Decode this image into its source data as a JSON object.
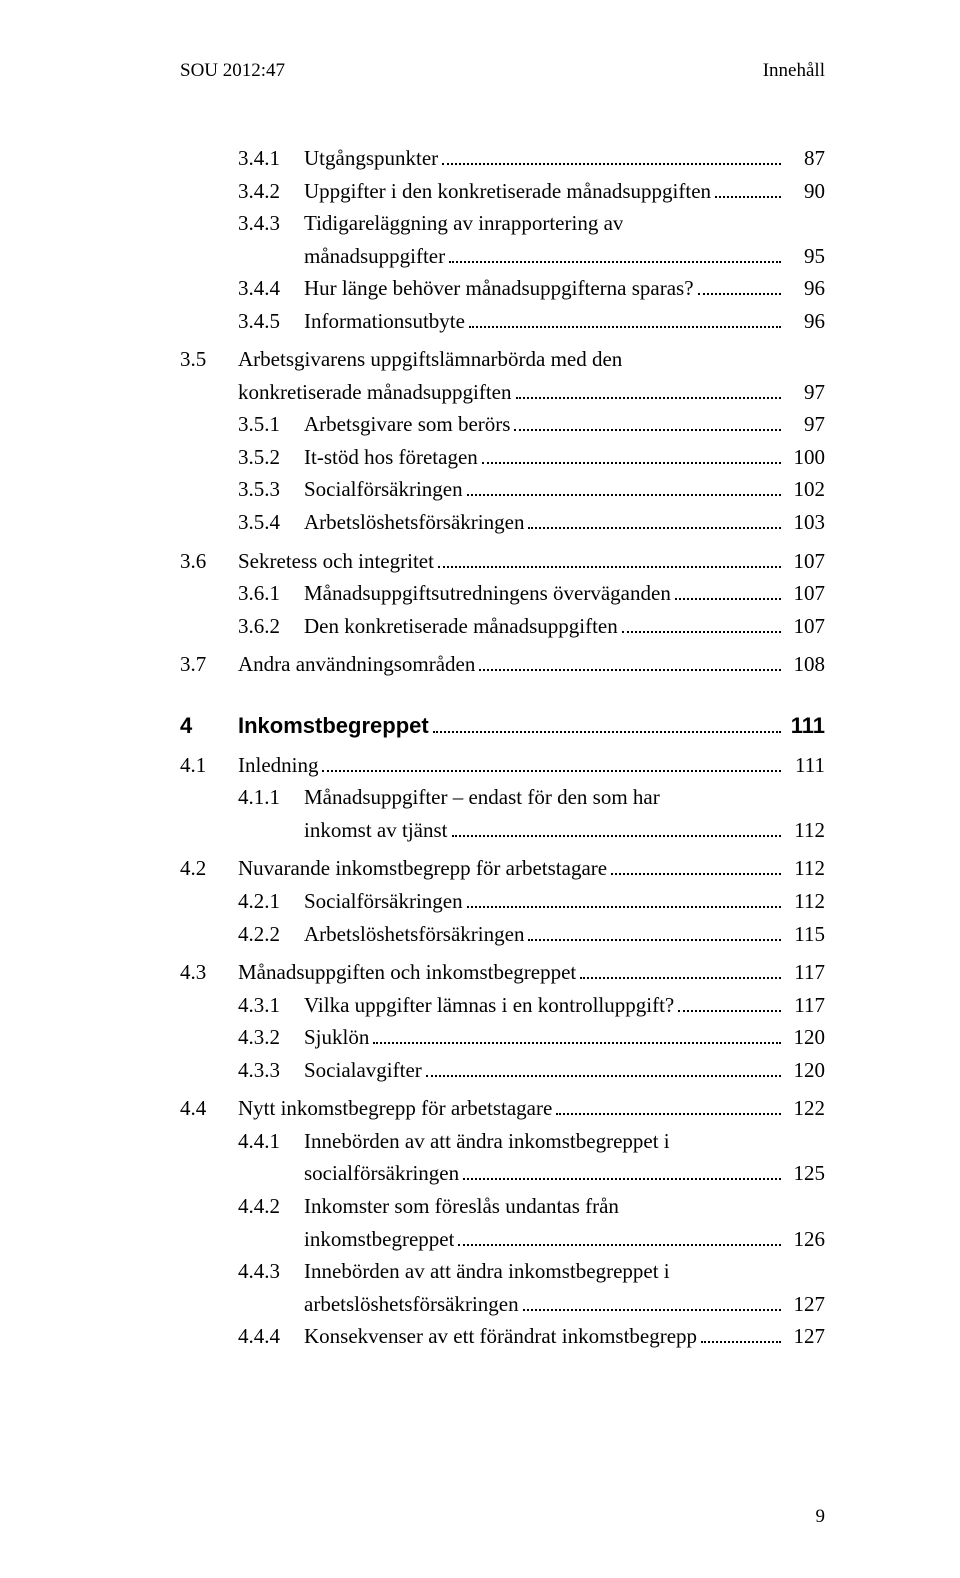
{
  "header": {
    "left": "SOU 2012:47",
    "right": "Innehåll"
  },
  "footer": {
    "pageno": "9"
  },
  "toc": [
    {
      "type": "lvl2",
      "num": "3.4.1",
      "label": "Utgångspunkter",
      "page": "87"
    },
    {
      "type": "lvl2",
      "num": "3.4.2",
      "label": "Uppgifter i den konkretiserade månadsuppgiften",
      "page": "90"
    },
    {
      "type": "lvl2",
      "num": "3.4.3",
      "label": "Tidigareläggning av inrapportering av"
    },
    {
      "type": "cont",
      "label": "månadsuppgifter",
      "page": "95"
    },
    {
      "type": "lvl2",
      "num": "3.4.4",
      "label": "Hur länge behöver månadsuppgifterna sparas?",
      "page": "96"
    },
    {
      "type": "lvl2",
      "num": "3.4.5",
      "label": "Informationsutbyte",
      "page": "96"
    },
    {
      "type": "gap-sm"
    },
    {
      "type": "lvl1",
      "num": "3.5",
      "label": "Arbetsgivarens uppgiftslämnarbörda med den"
    },
    {
      "type": "cont-l1",
      "label": "konkretiserade månadsuppgiften",
      "page": "97"
    },
    {
      "type": "lvl2",
      "num": "3.5.1",
      "label": "Arbetsgivare som berörs",
      "page": "97"
    },
    {
      "type": "lvl2",
      "num": "3.5.2",
      "label": "It-stöd hos företagen",
      "page": "100"
    },
    {
      "type": "lvl2",
      "num": "3.5.3",
      "label": "Socialförsäkringen",
      "page": "102"
    },
    {
      "type": "lvl2",
      "num": "3.5.4",
      "label": "Arbetslöshetsförsäkringen",
      "page": "103"
    },
    {
      "type": "gap-sm"
    },
    {
      "type": "lvl1",
      "num": "3.6",
      "label": "Sekretess och integritet",
      "page": "107"
    },
    {
      "type": "lvl2",
      "num": "3.6.1",
      "label": "Månadsuppgiftsutredningens överväganden",
      "page": "107"
    },
    {
      "type": "lvl2",
      "num": "3.6.2",
      "label": "Den konkretiserade månadsuppgiften",
      "page": "107"
    },
    {
      "type": "gap-sm"
    },
    {
      "type": "lvl1",
      "num": "3.7",
      "label": "Andra användningsområden",
      "page": "108"
    },
    {
      "type": "chapter",
      "num": "4",
      "label": "Inkomstbegreppet",
      "page": "111"
    },
    {
      "type": "lvl1",
      "num": "4.1",
      "label": "Inledning",
      "page": "111"
    },
    {
      "type": "lvl2",
      "num": "4.1.1",
      "label": "Månadsuppgifter – endast för den som har"
    },
    {
      "type": "cont",
      "label": "inkomst av tjänst",
      "page": "112"
    },
    {
      "type": "gap-sm"
    },
    {
      "type": "lvl1",
      "num": "4.2",
      "label": "Nuvarande inkomstbegrepp för arbetstagare",
      "page": "112"
    },
    {
      "type": "lvl2",
      "num": "4.2.1",
      "label": "Socialförsäkringen",
      "page": "112"
    },
    {
      "type": "lvl2",
      "num": "4.2.2",
      "label": "Arbetslöshetsförsäkringen",
      "page": "115"
    },
    {
      "type": "gap-sm"
    },
    {
      "type": "lvl1",
      "num": "4.3",
      "label": "Månadsuppgiften och inkomstbegreppet",
      "page": "117"
    },
    {
      "type": "lvl2",
      "num": "4.3.1",
      "label": "Vilka uppgifter lämnas i en kontrolluppgift?",
      "page": "117"
    },
    {
      "type": "lvl2",
      "num": "4.3.2",
      "label": "Sjuklön",
      "page": "120"
    },
    {
      "type": "lvl2",
      "num": "4.3.3",
      "label": "Socialavgifter",
      "page": "120"
    },
    {
      "type": "gap-sm"
    },
    {
      "type": "lvl1",
      "num": "4.4",
      "label": "Nytt inkomstbegrepp för arbetstagare",
      "page": "122"
    },
    {
      "type": "lvl2",
      "num": "4.4.1",
      "label": "Innebörden av att ändra inkomstbegreppet i"
    },
    {
      "type": "cont",
      "label": "socialförsäkringen",
      "page": "125"
    },
    {
      "type": "lvl2",
      "num": "4.4.2",
      "label": "Inkomster som föreslås undantas från"
    },
    {
      "type": "cont",
      "label": "inkomstbegreppet",
      "page": "126"
    },
    {
      "type": "lvl2",
      "num": "4.4.3",
      "label": "Innebörden av att ändra inkomstbegreppet i"
    },
    {
      "type": "cont",
      "label": "arbetslöshetsförsäkringen",
      "page": "127"
    },
    {
      "type": "lvl2",
      "num": "4.4.4",
      "label": "Konsekvenser av ett förändrat inkomstbegrepp",
      "page": "127"
    }
  ]
}
